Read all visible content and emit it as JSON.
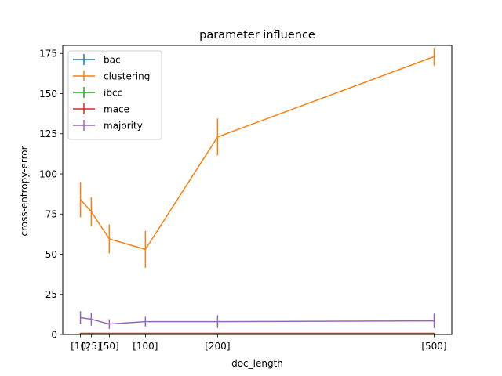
{
  "chart_data": {
    "type": "line",
    "title": "parameter influence",
    "xlabel": "doc_length",
    "ylabel": "cross-entropy-error",
    "x": [
      10,
      25,
      50,
      100,
      200,
      500
    ],
    "x_tick_labels": [
      "[10]",
      "[25]",
      "[50]",
      "[100]",
      "[200]",
      "[500]"
    ],
    "xlim": [
      -14.5,
      524.5
    ],
    "ylim": [
      0,
      180
    ],
    "y_ticks": [
      0,
      25,
      50,
      75,
      100,
      125,
      150,
      175
    ],
    "grid": false,
    "legend_position": "top-left",
    "series": [
      {
        "name": "bac",
        "color": "#1f77b4",
        "values": [
          0.6,
          0.6,
          0.6,
          0.6,
          0.6,
          0.6
        ],
        "errors": [
          0.3,
          0.3,
          0.3,
          0.3,
          0.3,
          0.3
        ]
      },
      {
        "name": "clustering",
        "color": "#ff7f0e",
        "values": [
          84,
          76.5,
          59.5,
          53,
          123,
          173
        ],
        "errors": [
          11,
          9,
          9,
          11.5,
          11.5,
          5.5
        ]
      },
      {
        "name": "ibcc",
        "color": "#2ca02c",
        "values": [
          0.5,
          0.5,
          0.5,
          0.5,
          0.5,
          0.5
        ],
        "errors": [
          0.3,
          0.3,
          0.3,
          0.3,
          0.3,
          0.3
        ]
      },
      {
        "name": "mace",
        "color": "#d62728",
        "values": [
          0.7,
          0.7,
          0.7,
          0.7,
          0.7,
          0.7
        ],
        "errors": [
          0.3,
          0.3,
          0.3,
          0.3,
          0.3,
          0.3
        ]
      },
      {
        "name": "majority",
        "color": "#9467bd",
        "values": [
          10.5,
          9.5,
          6.5,
          8,
          8,
          8.5
        ],
        "errors": [
          4,
          4,
          3,
          3,
          4,
          4.5
        ]
      }
    ]
  }
}
